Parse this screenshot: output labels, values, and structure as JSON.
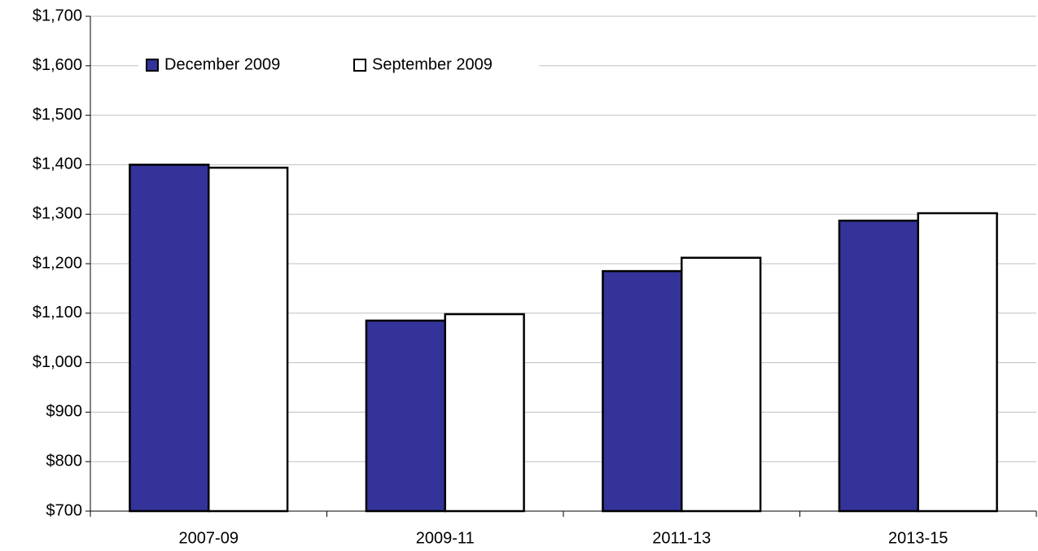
{
  "chart_data": {
    "type": "bar",
    "categories": [
      "2007-09",
      "2009-11",
      "2011-13",
      "2013-15"
    ],
    "series": [
      {
        "name": "December 2009",
        "color": "#333399",
        "values": [
          1400,
          1085,
          1185,
          1287
        ]
      },
      {
        "name": "September 2009",
        "color": "#ffffff",
        "values": [
          1394,
          1098,
          1212,
          1302
        ]
      }
    ],
    "ylim": [
      700,
      1700
    ],
    "yticks": [
      {
        "value": 700,
        "label": "$700"
      },
      {
        "value": 800,
        "label": "$800"
      },
      {
        "value": 900,
        "label": "$900"
      },
      {
        "value": 1000,
        "label": "$1,000"
      },
      {
        "value": 1100,
        "label": "$1,100"
      },
      {
        "value": 1200,
        "label": "$1,200"
      },
      {
        "value": 1300,
        "label": "$1,300"
      },
      {
        "value": 1400,
        "label": "$1,400"
      },
      {
        "value": 1500,
        "label": "$1,500"
      },
      {
        "value": 1600,
        "label": "$1,600"
      },
      {
        "value": 1700,
        "label": "$1,700"
      }
    ],
    "grid": true,
    "legend": "upper left"
  }
}
